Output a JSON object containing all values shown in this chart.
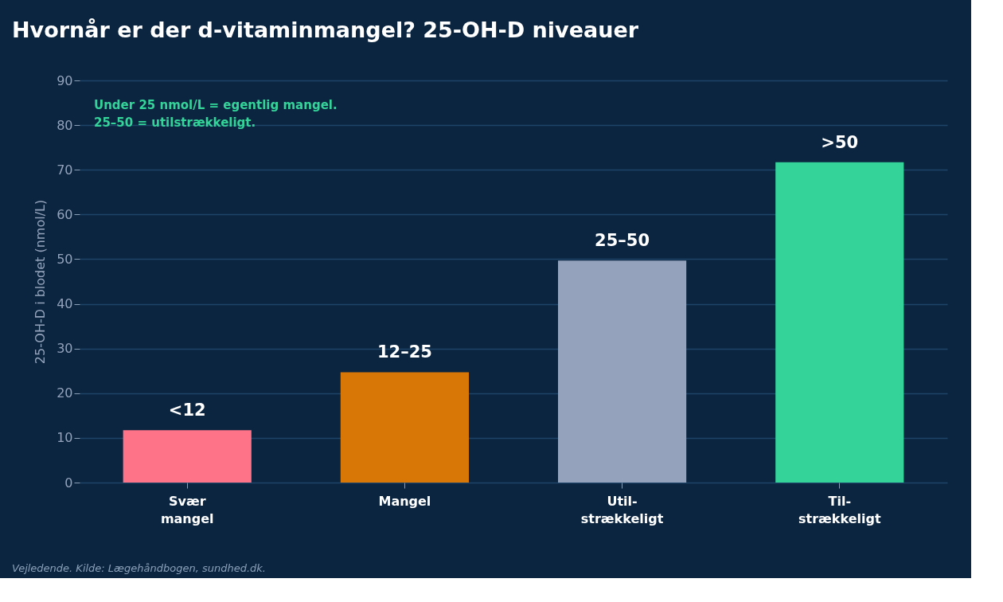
{
  "chart_data": {
    "type": "bar",
    "title": "Hvornår er der d-vitaminmangel? 25-OH-D niveauer",
    "ylabel": "25-OH-D i blodet (nmol/L)",
    "categories": [
      "Svær\nmangel",
      "Mangel",
      "Util-\nstrækkeligt",
      "Til-\nstrækkeligt"
    ],
    "values": [
      11.7,
      24.7,
      49.7,
      71.7
    ],
    "colors": [
      "#ff7388",
      "#d97706",
      "#94a3bb",
      "#34d399"
    ],
    "value_labels": [
      "<12",
      "12–25",
      "25–50",
      ">50"
    ],
    "ylim": [
      0,
      90
    ],
    "yticks": [
      0,
      10,
      20,
      30,
      40,
      50,
      60,
      70,
      80,
      90
    ],
    "grid": "y",
    "annotations": [
      "Under 25 nmol/L = egentlig mangel.\n25–50 = utilstrækkeligt.",
      "Vejledende. Kilde: Lægehåndbogen, sundhed.dk."
    ]
  }
}
